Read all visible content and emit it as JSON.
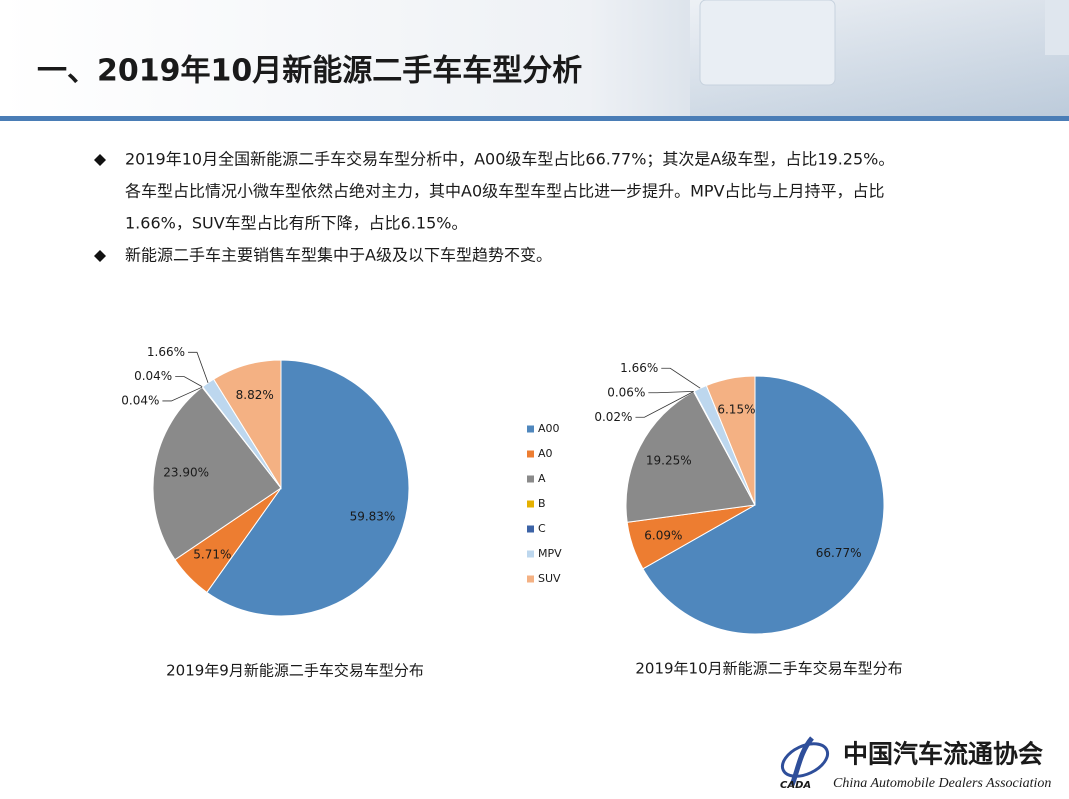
{
  "header": {
    "title": "一、2019年10月新能源二手车车型分析"
  },
  "bullets": [
    [
      "2019年10月全国新能源二手车交易车型分析中，A00级车型占比66.77%；其次是A级车型，占比19.25%。",
      "各车型占比情况小微车型依然占绝对主力，其中A0级车型车型占比进一步提升。MPV占比与上月持平，占比",
      "1.66%，SUV车型占比有所下降，占比6.15%。"
    ],
    [
      "新能源二手车主要销售车型集中于A级及以下车型趋势不变。"
    ]
  ],
  "chart_data": [
    {
      "type": "pie",
      "title": "2019年9月新能源二手车交易车型分布",
      "categories": [
        "A00",
        "A0",
        "A",
        "B",
        "C",
        "MPV",
        "SUV"
      ],
      "values": [
        59.83,
        5.71,
        23.9,
        0.04,
        0.04,
        1.66,
        8.82
      ],
      "value_labels": [
        "59.83%",
        "5.71%",
        "23.90%",
        "0.04%",
        "0.04%",
        "1.66%",
        "8.82%"
      ],
      "colors": [
        "#4f87bd",
        "#ed7d31",
        "#8a8a8a",
        "#e5b100",
        "#3c63a6",
        "#bdd7ee",
        "#f4b183"
      ],
      "legend": "right"
    },
    {
      "type": "pie",
      "title": "2019年10月新能源二手车交易车型分布",
      "categories": [
        "A00",
        "A0",
        "A",
        "B",
        "C",
        "MPV",
        "SUV"
      ],
      "values": [
        66.77,
        6.09,
        19.25,
        0.02,
        0.06,
        1.66,
        6.15
      ],
      "value_labels": [
        "66.77%",
        "6.09%",
        "19.25%",
        "0.02%",
        "0.06%",
        "1.66%",
        "6.15%"
      ],
      "colors": [
        "#4f87bd",
        "#ed7d31",
        "#8a8a8a",
        "#e5b100",
        "#3c63a6",
        "#bdd7ee",
        "#f4b183"
      ]
    }
  ],
  "logo": {
    "cn": "中国汽车流通协会",
    "en": "China Automobile Dealers Association",
    "abbr": "CADA"
  }
}
